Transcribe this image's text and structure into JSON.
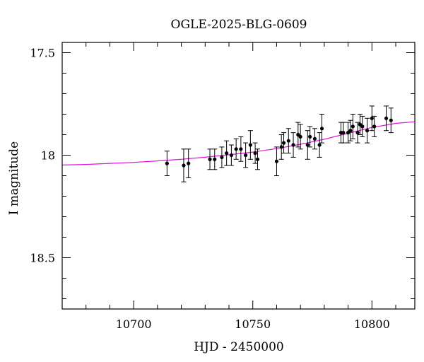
{
  "chart_data": {
    "type": "scatter",
    "title": "OGLE-2025-BLG-0609",
    "xlabel": "HJD - 2450000",
    "ylabel": "I magnitude",
    "xlim": [
      10670,
      10818
    ],
    "ylim": [
      18.75,
      17.45
    ],
    "y_inverted": true,
    "x_ticks": [
      10700,
      10750,
      10800
    ],
    "x_tick_labels": [
      "10700",
      "10750",
      "10800"
    ],
    "y_ticks": [
      17.5,
      18,
      18.5
    ],
    "y_tick_labels": [
      "17.5",
      "18",
      "18.5"
    ],
    "grid": false,
    "legend": "none",
    "colors": {
      "points": "#000000",
      "model": "#e010e0",
      "axes": "#000000"
    },
    "series": [
      {
        "type": "scatter_errorbar",
        "x": [
          10714,
          10721,
          10723,
          10732,
          10734,
          10737,
          10739,
          10741,
          10743,
          10745,
          10747,
          10749,
          10751,
          10752,
          10760,
          10762,
          10763,
          10765,
          10767,
          10769,
          10770,
          10773,
          10774,
          10776,
          10778,
          10779,
          10787,
          10788,
          10790,
          10791,
          10792,
          10794,
          10795,
          10796,
          10798,
          10800,
          10801,
          10806,
          10808
        ],
        "y": [
          18.04,
          18.05,
          18.04,
          18.02,
          18.02,
          18.01,
          17.99,
          18.0,
          17.97,
          17.97,
          18.0,
          17.95,
          17.99,
          18.02,
          18.03,
          17.96,
          17.94,
          17.93,
          17.95,
          17.9,
          17.91,
          17.95,
          17.91,
          17.92,
          17.95,
          17.87,
          17.89,
          17.89,
          17.89,
          17.88,
          17.86,
          17.89,
          17.85,
          17.86,
          17.88,
          17.82,
          17.86,
          17.82,
          17.83
        ],
        "err": [
          0.06,
          0.08,
          0.07,
          0.05,
          0.05,
          0.05,
          0.06,
          0.05,
          0.05,
          0.06,
          0.06,
          0.07,
          0.05,
          0.05,
          0.07,
          0.06,
          0.05,
          0.06,
          0.06,
          0.06,
          0.06,
          0.07,
          0.05,
          0.05,
          0.06,
          0.07,
          0.05,
          0.05,
          0.05,
          0.05,
          0.06,
          0.05,
          0.05,
          0.05,
          0.06,
          0.06,
          0.05,
          0.06,
          0.06
        ]
      },
      {
        "type": "model_line",
        "x": [
          10670,
          10680,
          10690,
          10700,
          10710,
          10720,
          10730,
          10740,
          10750,
          10760,
          10770,
          10780,
          10790,
          10800,
          10810,
          10818
        ],
        "y": [
          18.048,
          18.045,
          18.04,
          18.035,
          18.028,
          18.02,
          18.01,
          17.998,
          17.985,
          17.968,
          17.947,
          17.922,
          17.893,
          17.865,
          17.845,
          17.837
        ]
      }
    ]
  }
}
